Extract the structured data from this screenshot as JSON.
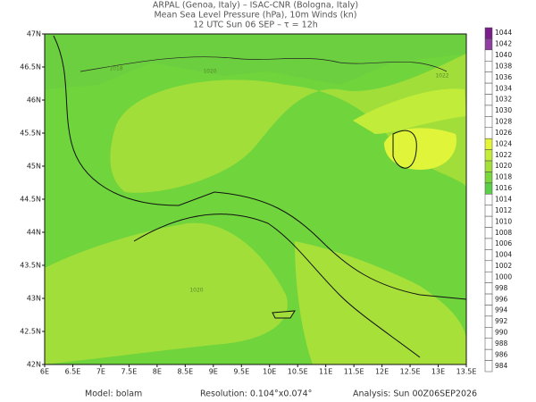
{
  "header": {
    "line1": "ARPAL (Genoa, Italy)  –  ISAC-CNR (Bologna, Italy)",
    "line2": "Mean Sea Level Pressure (hPa), 10m Winds (kn)",
    "line3": "12 UTC Sun 06 SEP  –  τ = 12h"
  },
  "map": {
    "lat_labels": [
      "47N",
      "46.5N",
      "46N",
      "45.5N",
      "45N",
      "44.5N",
      "44N",
      "43.5N",
      "43N",
      "42.5N",
      "42N"
    ],
    "lon_labels": [
      "6E",
      "6.5E",
      "7E",
      "7.5E",
      "8E",
      "8.5E",
      "9E",
      "9.5E",
      "10E",
      "10.5E",
      "11E",
      "11.5E",
      "12E",
      "12.5E",
      "13E",
      "13.5E"
    ],
    "contour_labels": [
      "1018",
      "1020",
      "1022",
      "1020"
    ]
  },
  "colorbar": [
    {
      "label": "1044",
      "color": "#7a1f8a"
    },
    {
      "label": "1042",
      "color": "#8e3fa0"
    },
    {
      "label": "1040",
      "color": "#ffffff"
    },
    {
      "label": "1038",
      "color": "#ffffff"
    },
    {
      "label": "1036",
      "color": "#ffffff"
    },
    {
      "label": "1034",
      "color": "#ffffff"
    },
    {
      "label": "1032",
      "color": "#ffffff"
    },
    {
      "label": "1030",
      "color": "#ffffff"
    },
    {
      "label": "1028",
      "color": "#ffffff"
    },
    {
      "label": "1026",
      "color": "#ffffff"
    },
    {
      "label": "1024",
      "color": "#e4f53a"
    },
    {
      "label": "1022",
      "color": "#c4ec3a"
    },
    {
      "label": "1020",
      "color": "#a4df3a"
    },
    {
      "label": "1018",
      "color": "#7ad83c"
    },
    {
      "label": "1016",
      "color": "#5ccf48"
    },
    {
      "label": "1014",
      "color": "#ffffff"
    },
    {
      "label": "1012",
      "color": "#ffffff"
    },
    {
      "label": "1010",
      "color": "#ffffff"
    },
    {
      "label": "1008",
      "color": "#ffffff"
    },
    {
      "label": "1006",
      "color": "#ffffff"
    },
    {
      "label": "1004",
      "color": "#ffffff"
    },
    {
      "label": "1002",
      "color": "#ffffff"
    },
    {
      "label": "1000",
      "color": "#ffffff"
    },
    {
      "label": "998",
      "color": "#ffffff"
    },
    {
      "label": "996",
      "color": "#ffffff"
    },
    {
      "label": "994",
      "color": "#ffffff"
    },
    {
      "label": "992",
      "color": "#ffffff"
    },
    {
      "label": "990",
      "color": "#ffffff"
    },
    {
      "label": "988",
      "color": "#ffffff"
    },
    {
      "label": "986",
      "color": "#ffffff"
    },
    {
      "label": "984",
      "color": "#ffffff"
    }
  ],
  "footer": {
    "model": "Model: bolam",
    "resolution": "Resolution: 0.104°x0.074°",
    "analysis": "Analysis: Sun 00Z06SEP2026"
  }
}
